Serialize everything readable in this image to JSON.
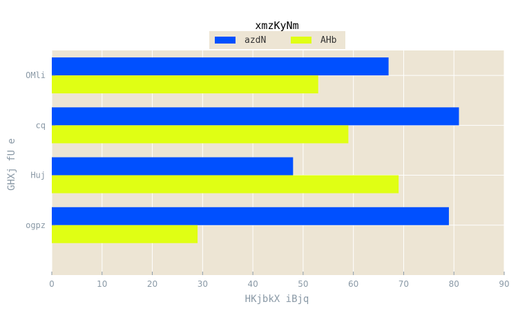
{
  "chart_data": {
    "type": "bar",
    "orientation": "horizontal",
    "title": "xmzKyNm",
    "xlabel": "HKjbkX iBjq",
    "ylabel": "GHXj fU e",
    "categories": [
      "OMli",
      "cq",
      "Huj",
      "ogpz"
    ],
    "series": [
      {
        "name": "azdN",
        "values": [
          67,
          81,
          48,
          79
        ],
        "color": "#0050ff"
      },
      {
        "name": "AHb",
        "values": [
          53,
          59,
          69,
          29
        ],
        "color": "#e0ff14"
      }
    ],
    "xlim": [
      0,
      90
    ],
    "xticks": [
      "0",
      "10",
      "20",
      "30",
      "40",
      "50",
      "60",
      "70",
      "80",
      "90"
    ],
    "grid": true,
    "legend_position": "top-center",
    "colors": {
      "plot_background": "#ede5d4",
      "grid": "#ffffff",
      "axis_text": "#8a99a6",
      "title_text": "#000000"
    }
  }
}
